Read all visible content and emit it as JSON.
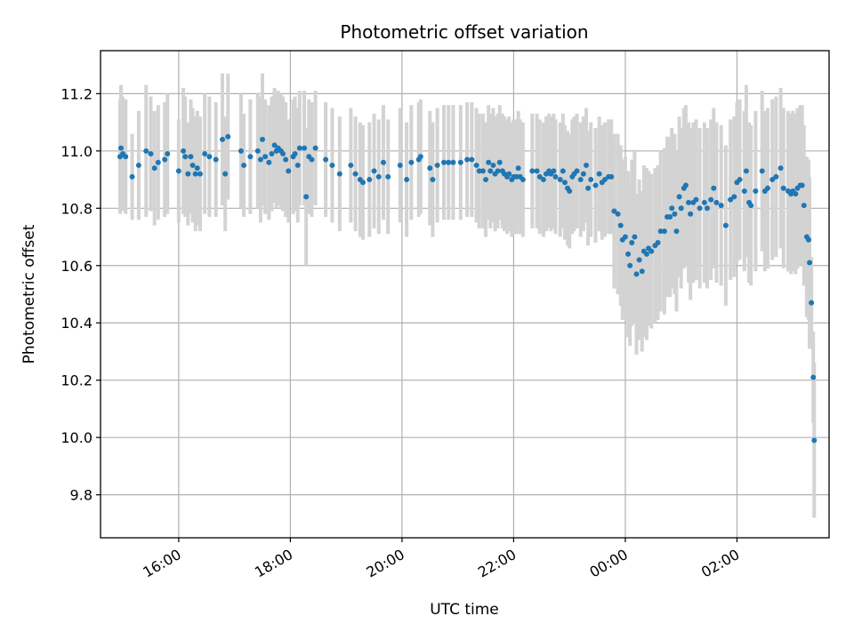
{
  "chart_data": {
    "type": "scatter",
    "title": "Photometric offset variation",
    "xlabel": "UTC time",
    "ylabel": "Photometric offset",
    "x_axis": "time",
    "x_start": "15:00",
    "x_end": "03:30",
    "xlim_hours": [
      14.6,
      27.65
    ],
    "ylim": [
      9.65,
      11.35
    ],
    "x_ticks": [
      {
        "label": "16:00",
        "hour": 16
      },
      {
        "label": "18:00",
        "hour": 18
      },
      {
        "label": "20:00",
        "hour": 20
      },
      {
        "label": "22:00",
        "hour": 22
      },
      {
        "label": "00:00",
        "hour": 24
      },
      {
        "label": "02:00",
        "hour": 26
      }
    ],
    "y_ticks": [
      "9.8",
      "10.0",
      "10.2",
      "10.4",
      "10.6",
      "10.8",
      "11.0",
      "11.2"
    ],
    "grid": true,
    "legend": "none",
    "marker_color": "#1f77b4",
    "errorbar_color": "#d3d3d3",
    "series": [
      {
        "points": [
          [
            "14:57",
            10.98,
            0.2
          ],
          [
            "14:58",
            11.01,
            0.22
          ],
          [
            "15:00",
            10.99,
            0.2
          ],
          [
            "15:03",
            10.98,
            0.2
          ],
          [
            "15:10",
            10.91,
            0.15
          ],
          [
            "15:17",
            10.95,
            0.19
          ],
          [
            "15:25",
            11.0,
            0.23
          ],
          [
            "15:30",
            10.99,
            0.2
          ],
          [
            "15:34",
            10.94,
            0.2
          ],
          [
            "15:38",
            10.96,
            0.2
          ],
          [
            "15:45",
            10.97,
            0.2
          ],
          [
            "15:48",
            10.99,
            0.21
          ],
          [
            "16:00",
            10.93,
            0.18
          ],
          [
            "16:05",
            11.0,
            0.22
          ],
          [
            "16:07",
            10.98,
            0.21
          ],
          [
            "16:10",
            10.92,
            0.18
          ],
          [
            "16:13",
            10.98,
            0.2
          ],
          [
            "16:15",
            10.95,
            0.2
          ],
          [
            "16:18",
            10.92,
            0.2
          ],
          [
            "16:20",
            10.94,
            0.2
          ],
          [
            "16:23",
            10.92,
            0.2
          ],
          [
            "16:28",
            10.99,
            0.21
          ],
          [
            "16:33",
            10.98,
            0.21
          ],
          [
            "16:40",
            10.97,
            0.2
          ],
          [
            "16:47",
            11.04,
            0.23
          ],
          [
            "16:50",
            10.92,
            0.2
          ],
          [
            "16:53",
            11.05,
            0.22
          ],
          [
            "17:07",
            11.0,
            0.2
          ],
          [
            "17:10",
            10.95,
            0.18
          ],
          [
            "17:17",
            10.98,
            0.2
          ],
          [
            "17:25",
            11.0,
            0.2
          ],
          [
            "17:28",
            10.97,
            0.22
          ],
          [
            "17:30",
            11.04,
            0.23
          ],
          [
            "17:33",
            10.98,
            0.2
          ],
          [
            "17:37",
            10.96,
            0.2
          ],
          [
            "17:40",
            10.99,
            0.2
          ],
          [
            "17:43",
            11.02,
            0.2
          ],
          [
            "17:45",
            11.0,
            0.2
          ],
          [
            "17:47",
            11.01,
            0.2
          ],
          [
            "17:50",
            11.0,
            0.2
          ],
          [
            "17:52",
            10.99,
            0.2
          ],
          [
            "17:55",
            10.97,
            0.2
          ],
          [
            "17:58",
            10.93,
            0.18
          ],
          [
            "18:03",
            10.98,
            0.2
          ],
          [
            "18:05",
            10.99,
            0.2
          ],
          [
            "18:08",
            10.95,
            0.2
          ],
          [
            "18:10",
            11.01,
            0.2
          ],
          [
            "18:15",
            11.01,
            0.2
          ],
          [
            "18:17",
            10.84,
            0.24
          ],
          [
            "18:20",
            10.98,
            0.2
          ],
          [
            "18:23",
            10.97,
            0.2
          ],
          [
            "18:27",
            11.01,
            0.2
          ],
          [
            "18:38",
            10.97,
            0.2
          ],
          [
            "18:45",
            10.95,
            0.2
          ],
          [
            "18:53",
            10.92,
            0.2
          ],
          [
            "19:05",
            10.95,
            0.2
          ],
          [
            "19:10",
            10.92,
            0.2
          ],
          [
            "19:15",
            10.9,
            0.2
          ],
          [
            "19:18",
            10.89,
            0.2
          ],
          [
            "19:25",
            10.9,
            0.2
          ],
          [
            "19:30",
            10.93,
            0.2
          ],
          [
            "19:35",
            10.91,
            0.2
          ],
          [
            "19:40",
            10.96,
            0.2
          ],
          [
            "19:45",
            10.91,
            0.2
          ],
          [
            "19:58",
            10.95,
            0.2
          ],
          [
            "20:05",
            10.9,
            0.2
          ],
          [
            "20:10",
            10.96,
            0.2
          ],
          [
            "20:18",
            10.97,
            0.2
          ],
          [
            "20:20",
            10.98,
            0.2
          ],
          [
            "20:30",
            10.94,
            0.2
          ],
          [
            "20:33",
            10.9,
            0.2
          ],
          [
            "20:38",
            10.95,
            0.2
          ],
          [
            "20:45",
            10.96,
            0.2
          ],
          [
            "20:50",
            10.96,
            0.2
          ],
          [
            "20:55",
            10.96,
            0.2
          ],
          [
            "21:03",
            10.96,
            0.2
          ],
          [
            "21:10",
            10.97,
            0.2
          ],
          [
            "21:15",
            10.97,
            0.2
          ],
          [
            "21:20",
            10.95,
            0.2
          ],
          [
            "21:23",
            10.93,
            0.2
          ],
          [
            "21:27",
            10.93,
            0.2
          ],
          [
            "21:30",
            10.9,
            0.2
          ],
          [
            "21:33",
            10.96,
            0.2
          ],
          [
            "21:35",
            10.93,
            0.2
          ],
          [
            "21:38",
            10.95,
            0.2
          ],
          [
            "21:40",
            10.92,
            0.2
          ],
          [
            "21:43",
            10.93,
            0.2
          ],
          [
            "21:45",
            10.96,
            0.2
          ],
          [
            "21:48",
            10.93,
            0.2
          ],
          [
            "21:50",
            10.92,
            0.2
          ],
          [
            "21:53",
            10.91,
            0.2
          ],
          [
            "21:55",
            10.92,
            0.2
          ],
          [
            "21:58",
            10.9,
            0.2
          ],
          [
            "22:00",
            10.91,
            0.2
          ],
          [
            "22:03",
            10.91,
            0.2
          ],
          [
            "22:05",
            10.94,
            0.2
          ],
          [
            "22:07",
            10.91,
            0.2
          ],
          [
            "22:10",
            10.9,
            0.2
          ],
          [
            "22:20",
            10.93,
            0.2
          ],
          [
            "22:25",
            10.93,
            0.2
          ],
          [
            "22:28",
            10.91,
            0.2
          ],
          [
            "22:32",
            10.9,
            0.2
          ],
          [
            "22:35",
            10.92,
            0.2
          ],
          [
            "22:38",
            10.93,
            0.2
          ],
          [
            "22:40",
            10.92,
            0.2
          ],
          [
            "22:43",
            10.93,
            0.2
          ],
          [
            "22:45",
            10.91,
            0.2
          ],
          [
            "22:50",
            10.9,
            0.2
          ],
          [
            "22:53",
            10.93,
            0.2
          ],
          [
            "22:55",
            10.89,
            0.2
          ],
          [
            "22:58",
            10.87,
            0.2
          ],
          [
            "23:00",
            10.86,
            0.2
          ],
          [
            "23:03",
            10.91,
            0.2
          ],
          [
            "23:05",
            10.92,
            0.2
          ],
          [
            "23:08",
            10.93,
            0.2
          ],
          [
            "23:12",
            10.9,
            0.2
          ],
          [
            "23:15",
            10.92,
            0.2
          ],
          [
            "23:18",
            10.95,
            0.2
          ],
          [
            "23:20",
            10.87,
            0.2
          ],
          [
            "23:23",
            10.9,
            0.2
          ],
          [
            "23:28",
            10.88,
            0.2
          ],
          [
            "23:32",
            10.92,
            0.2
          ],
          [
            "23:35",
            10.89,
            0.2
          ],
          [
            "23:38",
            10.9,
            0.2
          ],
          [
            "23:42",
            10.91,
            0.2
          ],
          [
            "23:45",
            10.91,
            0.2
          ],
          [
            "23:48",
            10.79,
            0.27
          ],
          [
            "23:52",
            10.78,
            0.28
          ],
          [
            "23:55",
            10.74,
            0.28
          ],
          [
            "23:57",
            10.69,
            0.28
          ],
          [
            "00:00",
            10.7,
            0.28
          ],
          [
            "00:03",
            10.64,
            0.29
          ],
          [
            "00:05",
            10.6,
            0.28
          ],
          [
            "00:07",
            10.68,
            0.29
          ],
          [
            "00:10",
            10.7,
            0.3
          ],
          [
            "00:12",
            10.57,
            0.28
          ],
          [
            "00:15",
            10.62,
            0.28
          ],
          [
            "00:18",
            10.58,
            0.28
          ],
          [
            "00:20",
            10.65,
            0.3
          ],
          [
            "00:23",
            10.64,
            0.3
          ],
          [
            "00:25",
            10.66,
            0.27
          ],
          [
            "00:28",
            10.65,
            0.27
          ],
          [
            "00:32",
            10.67,
            0.27
          ],
          [
            "00:35",
            10.68,
            0.27
          ],
          [
            "00:38",
            10.72,
            0.28
          ],
          [
            "00:42",
            10.72,
            0.29
          ],
          [
            "00:45",
            10.77,
            0.28
          ],
          [
            "00:48",
            10.77,
            0.28
          ],
          [
            "00:50",
            10.8,
            0.28
          ],
          [
            "00:53",
            10.78,
            0.28
          ],
          [
            "00:55",
            10.72,
            0.28
          ],
          [
            "00:58",
            10.84,
            0.28
          ],
          [
            "01:00",
            10.8,
            0.28
          ],
          [
            "01:03",
            10.87,
            0.28
          ],
          [
            "01:05",
            10.88,
            0.28
          ],
          [
            "01:08",
            10.82,
            0.28
          ],
          [
            "01:10",
            10.78,
            0.3
          ],
          [
            "01:13",
            10.82,
            0.28
          ],
          [
            "01:16",
            10.83,
            0.28
          ],
          [
            "01:20",
            10.8,
            0.28
          ],
          [
            "01:25",
            10.82,
            0.28
          ],
          [
            "01:28",
            10.8,
            0.28
          ],
          [
            "01:32",
            10.83,
            0.28
          ],
          [
            "01:35",
            10.87,
            0.28
          ],
          [
            "01:38",
            10.82,
            0.28
          ],
          [
            "01:43",
            10.81,
            0.28
          ],
          [
            "01:48",
            10.74,
            0.28
          ],
          [
            "01:53",
            10.83,
            0.28
          ],
          [
            "01:57",
            10.84,
            0.28
          ],
          [
            "02:00",
            10.89,
            0.28
          ],
          [
            "02:03",
            10.9,
            0.28
          ],
          [
            "02:08",
            10.86,
            0.28
          ],
          [
            "02:10",
            10.93,
            0.3
          ],
          [
            "02:13",
            10.82,
            0.28
          ],
          [
            "02:15",
            10.81,
            0.28
          ],
          [
            "02:20",
            10.86,
            0.28
          ],
          [
            "02:27",
            10.93,
            0.28
          ],
          [
            "02:30",
            10.86,
            0.28
          ],
          [
            "02:33",
            10.87,
            0.28
          ],
          [
            "02:38",
            10.9,
            0.28
          ],
          [
            "02:42",
            10.91,
            0.28
          ],
          [
            "02:47",
            10.94,
            0.28
          ],
          [
            "02:50",
            10.87,
            0.28
          ],
          [
            "02:55",
            10.86,
            0.28
          ],
          [
            "02:58",
            10.85,
            0.28
          ],
          [
            "03:00",
            10.86,
            0.28
          ],
          [
            "03:03",
            10.85,
            0.28
          ],
          [
            "03:05",
            10.87,
            0.28
          ],
          [
            "03:08",
            10.88,
            0.28
          ],
          [
            "03:10",
            10.88,
            0.28
          ],
          [
            "03:12",
            10.81,
            0.28
          ],
          [
            "03:15",
            10.7,
            0.28
          ],
          [
            "03:17",
            10.69,
            0.28
          ],
          [
            "03:18",
            10.61,
            0.3
          ],
          [
            "03:20",
            10.47,
            0.16
          ],
          [
            "03:22",
            10.21,
            0.16
          ],
          [
            "03:23",
            9.99,
            0.27
          ]
        ]
      }
    ]
  }
}
